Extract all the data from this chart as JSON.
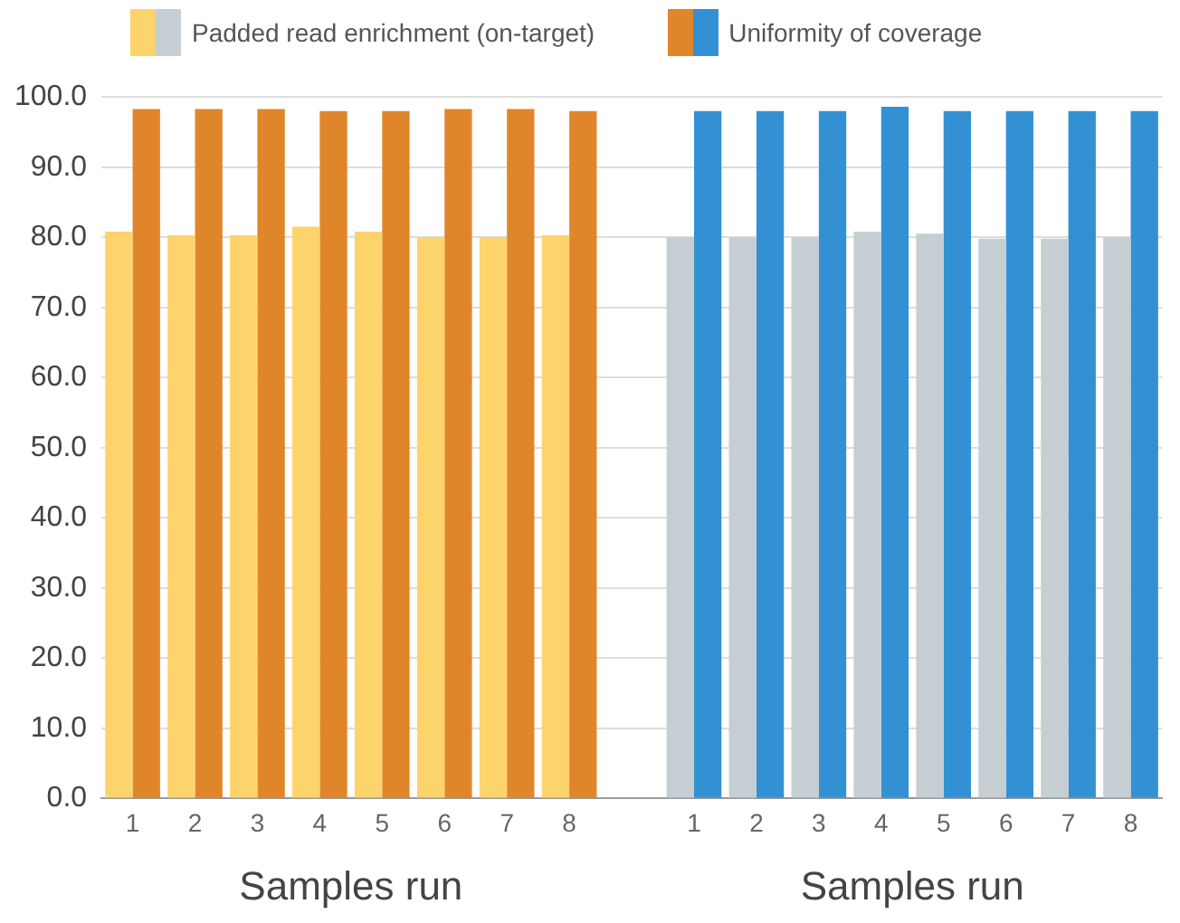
{
  "chart_data": {
    "type": "bar",
    "categories": [
      "1",
      "2",
      "3",
      "4",
      "5",
      "6",
      "7",
      "8",
      null,
      "1",
      "2",
      "3",
      "4",
      "5",
      "6",
      "7",
      "8"
    ],
    "series": [
      {
        "name": "Padded read enrichment (on-target)",
        "colors": [
          "#fdd36b",
          "#fdd36b",
          "#fdd36b",
          "#fdd36b",
          "#fdd36b",
          "#fdd36b",
          "#fdd36b",
          "#fdd36b",
          "#fdd36b",
          "#c5ced3",
          "#c5ced3",
          "#c5ced3",
          "#c5ced3",
          "#c5ced3",
          "#c5ced3",
          "#c5ced3",
          "#c5ced3"
        ],
        "values": [
          80.8,
          80.3,
          80.3,
          81.5,
          80.8,
          80.0,
          80.0,
          80.3,
          null,
          80.0,
          80.0,
          80.0,
          80.8,
          80.5,
          79.8,
          79.8,
          80.0
        ]
      },
      {
        "name": "Uniformity of coverage",
        "colors": [
          "#e0862a",
          "#e0862a",
          "#e0862a",
          "#e0862a",
          "#e0862a",
          "#e0862a",
          "#e0862a",
          "#e0862a",
          "#e0862a",
          "#3391d3",
          "#3391d3",
          "#3391d3",
          "#3391d3",
          "#3391d3",
          "#3391d3",
          "#3391d3",
          "#3391d3"
        ],
        "values": [
          98.3,
          98.3,
          98.3,
          98.0,
          98.0,
          98.3,
          98.3,
          98.0,
          null,
          98.0,
          98.0,
          98.0,
          98.6,
          98.0,
          98.0,
          98.0,
          98.0
        ]
      }
    ],
    "ylim": [
      0,
      100
    ],
    "yticks": [
      {
        "value": 0,
        "label": "0.0"
      },
      {
        "value": 10,
        "label": "10.0"
      },
      {
        "value": 20,
        "label": "20.0"
      },
      {
        "value": 30,
        "label": "30.0"
      },
      {
        "value": 40,
        "label": "40.0"
      },
      {
        "value": 50,
        "label": "50.0"
      },
      {
        "value": 60,
        "label": "60.0"
      },
      {
        "value": 70,
        "label": "70.0"
      },
      {
        "value": 80,
        "label": "80.0"
      },
      {
        "value": 90,
        "label": "90.0"
      },
      {
        "value": 100,
        "label": "100.0"
      }
    ],
    "grid": "y",
    "legend": "top",
    "annotations": [
      "Samples run",
      "Samples run"
    ]
  }
}
